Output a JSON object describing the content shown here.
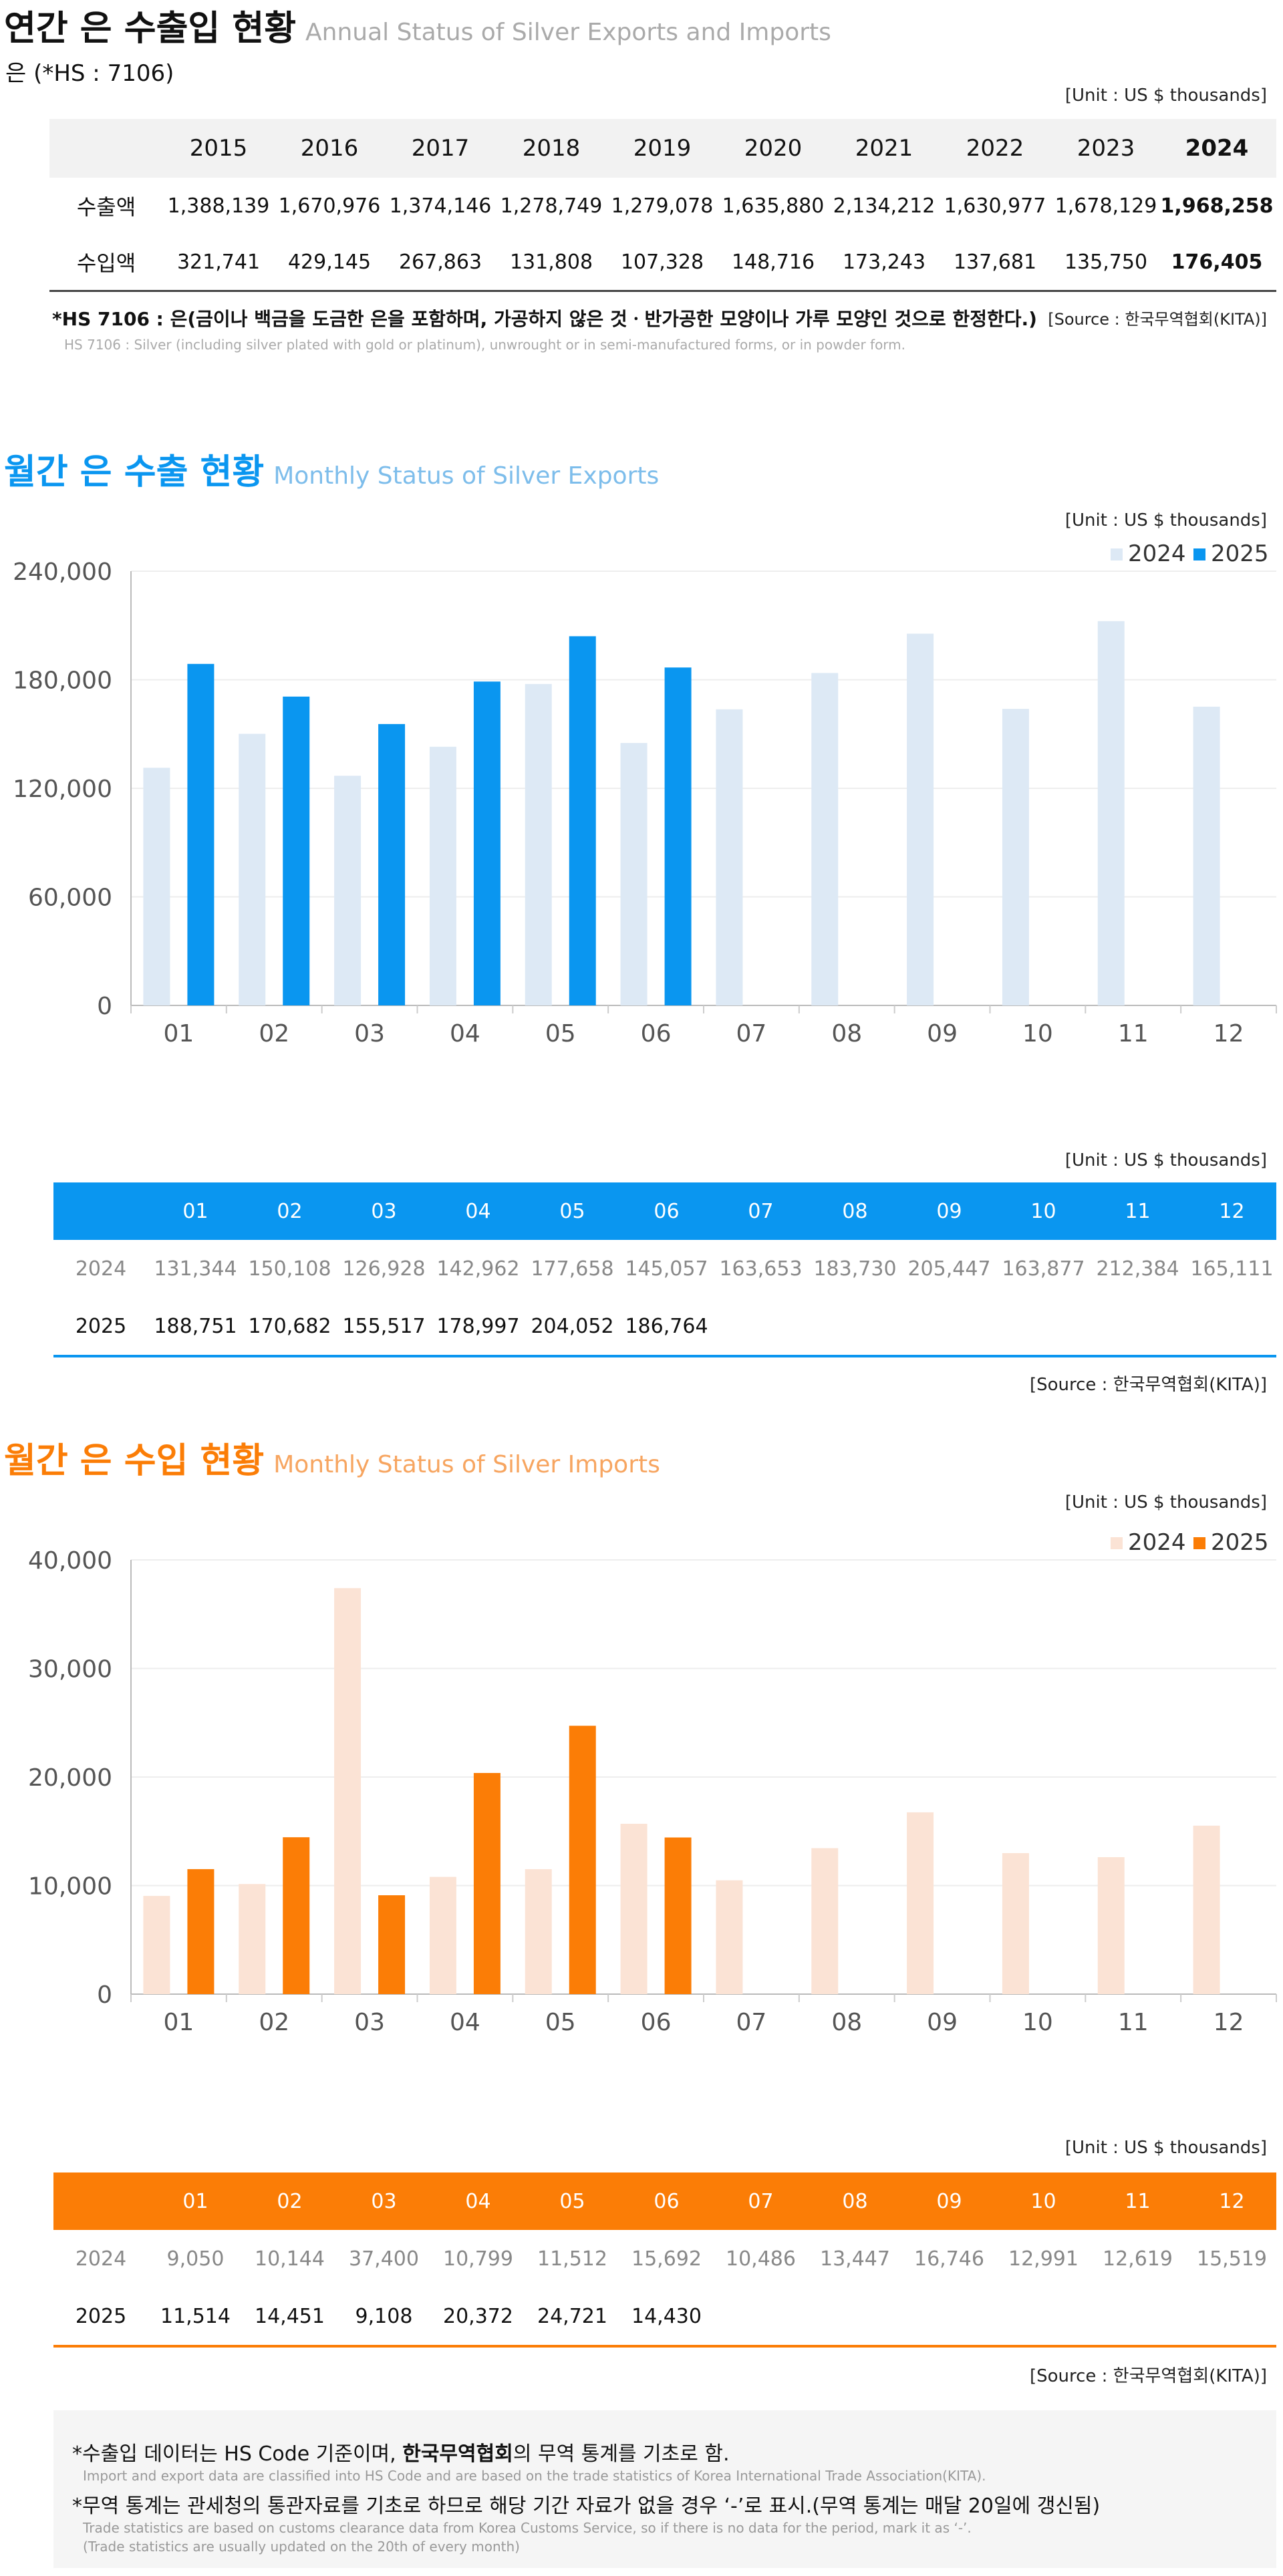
{
  "annual": {
    "title_ko": "연간 은 수출입 현황",
    "title_en": "Annual Status of Silver Exports and Imports",
    "subtitle": "은 (*HS : 7106)",
    "unit": "[Unit : US $ thousands]",
    "years": [
      "2015",
      "2016",
      "2017",
      "2018",
      "2019",
      "2020",
      "2021",
      "2022",
      "2023",
      "2024"
    ],
    "rows": [
      {
        "label": "수출액",
        "values": [
          "1,388,139",
          "1,670,976",
          "1,374,146",
          "1,278,749",
          "1,279,078",
          "1,635,880",
          "2,134,212",
          "1,630,977",
          "1,678,129",
          "1,968,258"
        ]
      },
      {
        "label": "수입액",
        "values": [
          "321,741",
          "429,145",
          "267,863",
          "131,808",
          "107,328",
          "148,716",
          "173,243",
          "137,681",
          "135,750",
          "176,405"
        ]
      }
    ],
    "note_ko": "*HS 7106 : 은(금이나 백금을 도금한 은을 포함하며, 가공하지 않은 것ㆍ반가공한 모양이나 가루 모양인 것으로 한정한다.)",
    "note_en": "HS 7106 : Silver (including silver plated with gold or platinum), unwrought or in semi-manufactured forms, or in powder form.",
    "source": "[Source : 한국무역협회(KITA)]"
  },
  "exports": {
    "title_ko": "월간 은 수출 현황",
    "title_en": "Monthly Status of Silver Exports",
    "unit_chart": "[Unit : US $ thousands]",
    "unit_table": "[Unit : US $ thousands]",
    "source": "[Source : 한국무역협회(KITA)]",
    "colors": {
      "s2024": "#dde9f5",
      "s2025": "#0a96f0",
      "header": "#0a96f0",
      "rule": "#0a96f0"
    },
    "table_2024": [
      "131,344",
      "150,108",
      "126,928",
      "142,962",
      "177,658",
      "145,057",
      "163,653",
      "183,730",
      "205,447",
      "163,877",
      "212,384",
      "165,111"
    ],
    "table_2025": [
      "188,751",
      "170,682",
      "155,517",
      "178,997",
      "204,052",
      "186,764",
      "",
      "",
      "",
      "",
      "",
      ""
    ]
  },
  "imports": {
    "title_ko": "월간 은 수입 현황",
    "title_en": "Monthly Status of Silver Imports",
    "unit_chart": "[Unit : US $ thousands]",
    "unit_table": "[Unit : US $ thousands]",
    "source": "[Source : 한국무역협회(KITA)]",
    "colors": {
      "s2024": "#fbe3d5",
      "s2025": "#fb7d06",
      "header": "#fb7d06",
      "rule": "#fb7d06"
    },
    "table_2024": [
      "9,050",
      "10,144",
      "37,400",
      "10,799",
      "11,512",
      "15,692",
      "10,486",
      "13,447",
      "16,746",
      "12,991",
      "12,619",
      "15,519"
    ],
    "table_2025": [
      "11,514",
      "14,451",
      "9,108",
      "20,372",
      "24,721",
      "14,430",
      "",
      "",
      "",
      "",
      "",
      ""
    ]
  },
  "footnotes": {
    "n1_pre": "*수출입 데이터는 HS Code 기준이며, ",
    "n1_bold": "한국무역협회",
    "n1_post": "의 무역 통계를 기초로 함.",
    "n1_en": "Import and export data are classified into HS Code and are based on the trade statistics of Korea International  Trade Association(KITA).",
    "n2": "*무역 통계는 관세청의  통관자료를 기초로 하므로 해당 기간 자료가 없을 경우 ‘-’로 표시.(무역 통계는 매달 20일에 갱신됨)",
    "n2_en1": "Trade statistics are based on customs clearance data from Korea Customs Service, so if there is no data for the period, mark it as ‘-’.",
    "n2_en2": "(Trade statistics are usually updated on the 20th of every month)"
  },
  "chart_data": [
    {
      "type": "bar",
      "categories": [
        "01",
        "02",
        "03",
        "04",
        "05",
        "06",
        "07",
        "08",
        "09",
        "10",
        "11",
        "12"
      ],
      "series": [
        {
          "name": "2024",
          "values": [
            131344,
            150108,
            126928,
            142962,
            177658,
            145057,
            163653,
            183730,
            205447,
            163877,
            212384,
            165111
          ]
        },
        {
          "name": "2025",
          "values": [
            188751,
            170682,
            155517,
            178997,
            204052,
            186764,
            null,
            null,
            null,
            null,
            null,
            null
          ]
        }
      ],
      "ylim": [
        0,
        240000
      ],
      "yticks": [
        0,
        60000,
        120000,
        180000,
        240000
      ],
      "ytick_labels": [
        "0",
        "60,000",
        "120,000",
        "180,000",
        "240,000"
      ],
      "legend": "top-right",
      "grid": true
    },
    {
      "type": "bar",
      "categories": [
        "01",
        "02",
        "03",
        "04",
        "05",
        "06",
        "07",
        "08",
        "09",
        "10",
        "11",
        "12"
      ],
      "series": [
        {
          "name": "2024",
          "values": [
            9050,
            10144,
            37400,
            10799,
            11512,
            15692,
            10486,
            13447,
            16746,
            12991,
            12619,
            15519
          ]
        },
        {
          "name": "2025",
          "values": [
            11514,
            14451,
            9108,
            20372,
            24721,
            14430,
            null,
            null,
            null,
            null,
            null,
            null
          ]
        }
      ],
      "ylim": [
        0,
        40000
      ],
      "yticks": [
        0,
        10000,
        20000,
        30000,
        40000
      ],
      "ytick_labels": [
        "0",
        "10,000",
        "20,000",
        "30,000",
        "40,000"
      ],
      "legend": "top-right",
      "grid": true
    }
  ]
}
